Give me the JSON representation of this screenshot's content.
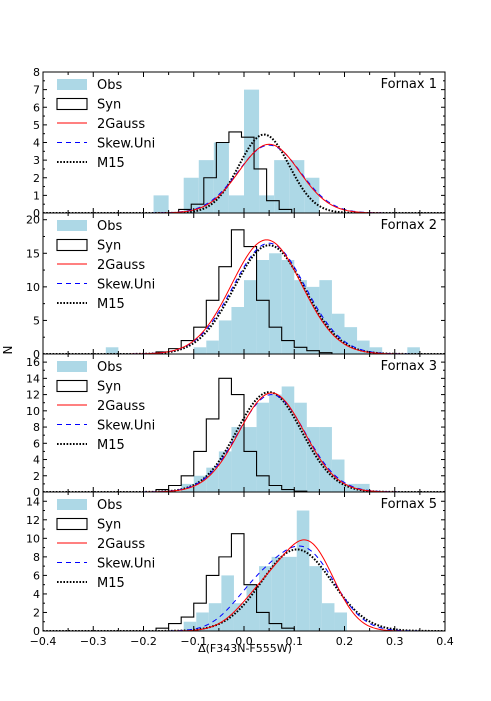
{
  "figure": {
    "xlabel": "Δ(F343N-F555W)",
    "ylabel": "N",
    "xlim": [
      -0.4,
      0.4
    ],
    "xticks": [
      -0.4,
      -0.3,
      -0.2,
      -0.1,
      0.0,
      0.1,
      0.2,
      0.3,
      0.4
    ],
    "xtick_labels": [
      "−0.4",
      "−0.3",
      "−0.2",
      "−0.1",
      "0.0",
      "0.1",
      "0.2",
      "0.3",
      "0.4"
    ],
    "colors": {
      "obs": "#add8e6",
      "syn": "#000000",
      "gauss": "#ff0000",
      "skew": "#0000ff",
      "m15": "#000000"
    }
  },
  "chart_data": [
    {
      "type": "bar",
      "title": "Fornax 1",
      "ylim": [
        0,
        8
      ],
      "yticks": [
        0,
        1,
        2,
        3,
        4,
        5,
        6,
        7,
        8
      ],
      "legend": [
        "Obs",
        "Syn",
        "2Gauss",
        "Skew.Uni",
        "M15"
      ],
      "legend_position": "top-left",
      "obs": {
        "bin_edges": [
          -0.18,
          -0.15,
          -0.12,
          -0.09,
          -0.06,
          -0.03,
          0.0,
          0.03,
          0.06,
          0.09,
          0.12,
          0.15
        ],
        "counts": [
          1,
          0,
          2,
          3,
          4,
          1,
          7,
          1,
          3,
          3,
          2
        ]
      },
      "syn": {
        "bin_edges": [
          -0.13,
          -0.105,
          -0.08,
          -0.055,
          -0.03,
          -0.005,
          0.02,
          0.045,
          0.07,
          0.095
        ],
        "counts": [
          0.2,
          0.5,
          2.0,
          4.0,
          4.6,
          4.3,
          2.5,
          0.7,
          0.2
        ]
      },
      "models": {
        "2Gauss": {
          "components": [
            [
              3.9,
              0.05,
              0.06
            ]
          ]
        },
        "Skew.Uni": {
          "components": [
            [
              3.85,
              0.05,
              0.062
            ]
          ]
        },
        "M15": {
          "components": [
            [
              4.45,
              0.04,
              0.05
            ]
          ]
        }
      }
    },
    {
      "type": "bar",
      "title": "Fornax 2",
      "ylim": [
        0,
        21
      ],
      "yticks": [
        0,
        5,
        10,
        15,
        20
      ],
      "legend": [
        "Obs",
        "Syn",
        "2Gauss",
        "Skew.Uni",
        "M15"
      ],
      "legend_position": "top-left",
      "obs": {
        "bin_edges": [
          -0.275,
          -0.25,
          -0.225,
          -0.2,
          -0.175,
          -0.15,
          -0.125,
          -0.1,
          -0.075,
          -0.05,
          -0.025,
          0.0,
          0.025,
          0.05,
          0.075,
          0.1,
          0.125,
          0.15,
          0.175,
          0.2,
          0.225,
          0.25,
          0.275,
          0.3,
          0.325,
          0.35
        ],
        "counts": [
          1,
          0,
          0,
          0,
          0,
          0,
          0,
          1,
          2,
          5,
          7,
          11,
          14,
          15,
          14,
          11,
          10,
          11,
          6,
          4,
          2,
          1,
          0,
          0,
          1
        ]
      },
      "syn": {
        "bin_edges": [
          -0.175,
          -0.15,
          -0.125,
          -0.1,
          -0.075,
          -0.05,
          -0.025,
          0.0,
          0.025,
          0.05,
          0.075,
          0.1,
          0.125,
          0.15,
          0.175
        ],
        "counts": [
          0.3,
          0.8,
          2.0,
          4.0,
          8.0,
          13.0,
          18.5,
          16.0,
          8.0,
          4.0,
          2.0,
          1.0,
          0.5,
          0.2
        ]
      },
      "models": {
        "2Gauss": {
          "components": [
            [
              17.0,
              0.045,
              0.07
            ]
          ]
        },
        "Skew.Uni": {
          "components": [
            [
              16.5,
              0.05,
              0.072
            ]
          ]
        },
        "M15": {
          "components": [
            [
              16.2,
              0.05,
              0.07
            ]
          ]
        }
      }
    },
    {
      "type": "bar",
      "title": "Fornax 3",
      "ylim": [
        0,
        17
      ],
      "yticks": [
        0,
        2,
        4,
        6,
        8,
        10,
        12,
        14,
        16
      ],
      "legend": [
        "Obs",
        "Syn",
        "2Gauss",
        "Skew.Uni",
        "M15"
      ],
      "legend_position": "top-left",
      "obs": {
        "bin_edges": [
          -0.2,
          -0.175,
          -0.15,
          -0.125,
          -0.1,
          -0.075,
          -0.05,
          -0.025,
          0.0,
          0.025,
          0.05,
          0.075,
          0.1,
          0.125,
          0.15,
          0.175,
          0.2,
          0.225,
          0.25
        ],
        "counts": [
          0,
          0,
          0,
          1,
          2,
          3,
          5,
          8,
          8,
          11,
          12,
          13,
          11,
          8,
          8,
          4,
          1,
          1
        ]
      },
      "syn": {
        "bin_edges": [
          -0.175,
          -0.15,
          -0.125,
          -0.1,
          -0.075,
          -0.05,
          -0.025,
          0.0,
          0.025,
          0.05,
          0.075,
          0.1,
          0.125
        ],
        "counts": [
          0.3,
          0.8,
          2.0,
          5.0,
          9.0,
          14.0,
          12.0,
          5.0,
          2.0,
          0.8,
          0.3,
          0.1
        ]
      },
      "models": {
        "2Gauss": {
          "components": [
            [
              12.2,
              0.055,
              0.065
            ]
          ]
        },
        "Skew.Uni": {
          "components": [
            [
              12.0,
              0.055,
              0.067
            ]
          ]
        },
        "M15": {
          "components": [
            [
              12.3,
              0.05,
              0.065
            ]
          ]
        }
      }
    },
    {
      "type": "bar",
      "title": "Fornax 5",
      "ylim": [
        0,
        15
      ],
      "yticks": [
        0,
        2,
        4,
        6,
        8,
        10,
        12,
        14
      ],
      "legend": [
        "Obs",
        "Syn",
        "2Gauss",
        "Skew.Uni",
        "M15"
      ],
      "legend_position": "top-left",
      "obs": {
        "bin_edges": [
          -0.12,
          -0.095,
          -0.07,
          -0.045,
          -0.02,
          0.005,
          0.03,
          0.055,
          0.08,
          0.105,
          0.13,
          0.155,
          0.18,
          0.205
        ],
        "counts": [
          1,
          2,
          3,
          6,
          3,
          5,
          7,
          8,
          8,
          13,
          7,
          3,
          2
        ]
      },
      "syn": {
        "bin_edges": [
          -0.175,
          -0.15,
          -0.125,
          -0.1,
          -0.075,
          -0.05,
          -0.025,
          0.0,
          0.025,
          0.05,
          0.075,
          0.1
        ],
        "counts": [
          0.3,
          0.8,
          1.5,
          3.0,
          6.0,
          8.0,
          10.5,
          5.0,
          2.0,
          0.8,
          0.3
        ]
      },
      "models": {
        "2Gauss": {
          "components": [
            [
              8.9,
              0.13,
              0.05
            ],
            [
              4.0,
              0.04,
              0.05
            ]
          ]
        },
        "Skew.Uni": {
          "components": [
            [
              8.6,
              0.12,
              0.06
            ],
            [
              3.5,
              0.02,
              0.05
            ]
          ]
        },
        "M15": {
          "components": [
            [
              8.8,
              0.105,
              0.07
            ]
          ]
        }
      }
    }
  ]
}
